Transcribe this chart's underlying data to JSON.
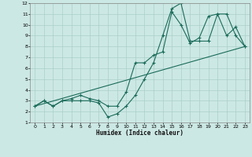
{
  "xlabel": "Humidex (Indice chaleur)",
  "xlim": [
    -0.5,
    23.5
  ],
  "ylim": [
    1,
    12
  ],
  "xticks": [
    0,
    1,
    2,
    3,
    4,
    5,
    6,
    7,
    8,
    9,
    10,
    11,
    12,
    13,
    14,
    15,
    16,
    17,
    18,
    19,
    20,
    21,
    22,
    23
  ],
  "yticks": [
    1,
    2,
    3,
    4,
    5,
    6,
    7,
    8,
    9,
    10,
    11,
    12
  ],
  "bg_color": "#cce8e4",
  "grid_color": "#aacfca",
  "line_color": "#1a6b5a",
  "line1_x": [
    0,
    1,
    2,
    3,
    4,
    5,
    6,
    7,
    8,
    9,
    10,
    11,
    12,
    13,
    14,
    15,
    16,
    17,
    18,
    19,
    20,
    21,
    22,
    23
  ],
  "line1_y": [
    2.5,
    3.0,
    2.5,
    3.0,
    3.0,
    3.0,
    3.0,
    2.8,
    1.5,
    1.8,
    2.5,
    3.5,
    5.0,
    6.5,
    9.0,
    11.5,
    12.0,
    8.5,
    8.5,
    8.5,
    11.0,
    11.0,
    9.0,
    8.0
  ],
  "line2_x": [
    0,
    1,
    2,
    3,
    4,
    5,
    6,
    7,
    8,
    9,
    10,
    11,
    12,
    13,
    14,
    15,
    16,
    17,
    18,
    19,
    20,
    21,
    22,
    23
  ],
  "line2_y": [
    2.5,
    3.0,
    2.5,
    3.0,
    3.2,
    3.5,
    3.2,
    3.0,
    2.5,
    2.5,
    3.8,
    6.5,
    6.5,
    7.2,
    7.5,
    11.2,
    10.0,
    8.3,
    8.8,
    10.8,
    11.0,
    9.0,
    9.8,
    8.0
  ],
  "line3_x": [
    0,
    23
  ],
  "line3_y": [
    2.5,
    8.0
  ]
}
